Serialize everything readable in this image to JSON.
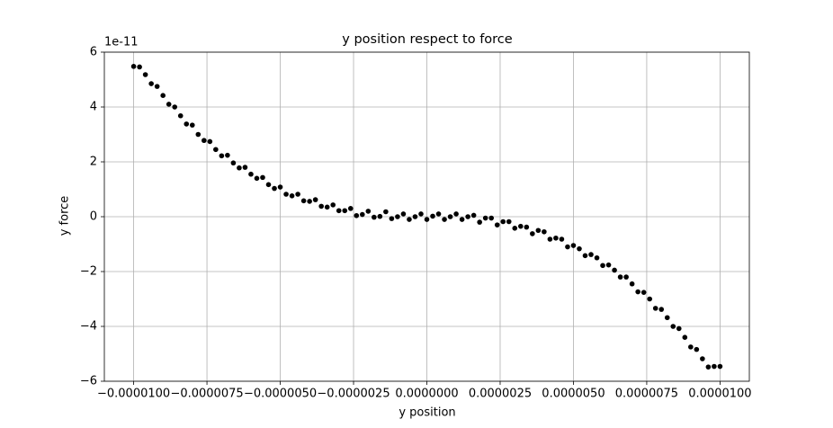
{
  "chart_data": {
    "type": "scatter",
    "title": "y position respect to force",
    "x_label": "y position",
    "y_label": "y force",
    "y_offset_label": "1e-11",
    "color": "#000000",
    "grid": true,
    "xlim": [
      -1.1e-05,
      1.1e-05
    ],
    "ylim": [
      -6,
      6
    ],
    "xticks": [
      {
        "value": -1e-05,
        "label": "−0.0000100"
      },
      {
        "value": -7.5e-06,
        "label": "−0.0000075"
      },
      {
        "value": -5e-06,
        "label": "−0.0000050"
      },
      {
        "value": -2.5e-06,
        "label": "−0.0000025"
      },
      {
        "value": 0,
        "label": "0.0000000"
      },
      {
        "value": 2.5e-06,
        "label": "0.0000025"
      },
      {
        "value": 5e-06,
        "label": "0.0000050"
      },
      {
        "value": 7.5e-06,
        "label": "0.0000075"
      },
      {
        "value": 1e-05,
        "label": "0.0000100"
      }
    ],
    "yticks": [
      {
        "value": -6,
        "label": "−6"
      },
      {
        "value": -4,
        "label": "−4"
      },
      {
        "value": -2,
        "label": "−2"
      },
      0,
      2,
      4,
      6
    ],
    "x": [
      -1e-05,
      -9.8e-06,
      -9.6e-06,
      -9.4e-06,
      -9.2e-06,
      -9e-06,
      -8.8e-06,
      -8.6e-06,
      -8.4e-06,
      -8.2e-06,
      -8e-06,
      -7.8e-06,
      -7.6e-06,
      -7.4e-06,
      -7.2e-06,
      -7e-06,
      -6.8e-06,
      -6.6e-06,
      -6.4e-06,
      -6.2e-06,
      -6e-06,
      -5.8e-06,
      -5.6e-06,
      -5.4e-06,
      -5.2e-06,
      -5e-06,
      -4.8e-06,
      -4.6e-06,
      -4.4e-06,
      -4.2e-06,
      -4e-06,
      -3.8e-06,
      -3.6e-06,
      -3.4e-06,
      -3.2e-06,
      -3e-06,
      -2.8e-06,
      -2.6e-06,
      -2.4e-06,
      -2.2e-06,
      -2e-06,
      -1.8e-06,
      -1.6e-06,
      -1.4e-06,
      -1.2e-06,
      -1e-06,
      -8e-07,
      -6e-07,
      -4e-07,
      -2e-07,
      0,
      2e-07,
      4e-07,
      6e-07,
      8e-07,
      1e-06,
      1.2e-06,
      1.4e-06,
      1.6e-06,
      1.8e-06,
      2e-06,
      2.2e-06,
      2.4e-06,
      2.6e-06,
      2.8e-06,
      3e-06,
      3.2e-06,
      3.4e-06,
      3.6e-06,
      3.8e-06,
      4e-06,
      4.2e-06,
      4.4e-06,
      4.6e-06,
      4.8e-06,
      5e-06,
      5.2e-06,
      5.4e-06,
      5.6e-06,
      5.8e-06,
      6e-06,
      6.2e-06,
      6.4e-06,
      6.6e-06,
      6.8e-06,
      7e-06,
      7.2e-06,
      7.4e-06,
      7.6e-06,
      7.8e-06,
      8e-06,
      8.2e-06,
      8.4e-06,
      8.6e-06,
      8.8e-06,
      9e-06,
      9.2e-06,
      9.4e-06,
      9.6e-06,
      9.8e-06,
      1e-05
    ],
    "values": [
      5.48,
      5.46,
      5.18,
      4.85,
      4.75,
      4.42,
      4.1,
      4.0,
      3.68,
      3.38,
      3.34,
      3.0,
      2.78,
      2.74,
      2.45,
      2.22,
      2.24,
      1.96,
      1.78,
      1.8,
      1.55,
      1.4,
      1.43,
      1.17,
      1.03,
      1.08,
      0.82,
      0.76,
      0.82,
      0.58,
      0.56,
      0.62,
      0.38,
      0.35,
      0.43,
      0.22,
      0.22,
      0.3,
      0.04,
      0.08,
      0.2,
      -0.02,
      0.01,
      0.18,
      -0.07,
      0.0,
      0.1,
      -0.1,
      0.0,
      0.1,
      -0.1,
      0.02,
      0.1,
      -0.1,
      0.0,
      0.1,
      -0.1,
      0.0,
      0.05,
      -0.2,
      -0.05,
      -0.05,
      -0.3,
      -0.18,
      -0.18,
      -0.42,
      -0.35,
      -0.38,
      -0.62,
      -0.5,
      -0.55,
      -0.82,
      -0.78,
      -0.82,
      -1.1,
      -1.05,
      -1.17,
      -1.42,
      -1.38,
      -1.5,
      -1.78,
      -1.76,
      -1.95,
      -2.2,
      -2.2,
      -2.45,
      -2.74,
      -2.76,
      -3.0,
      -3.34,
      -3.38,
      -3.68,
      -4.0,
      -4.08,
      -4.4,
      -4.75,
      -4.84,
      -5.18,
      -5.48,
      -5.46,
      -5.46
    ]
  }
}
